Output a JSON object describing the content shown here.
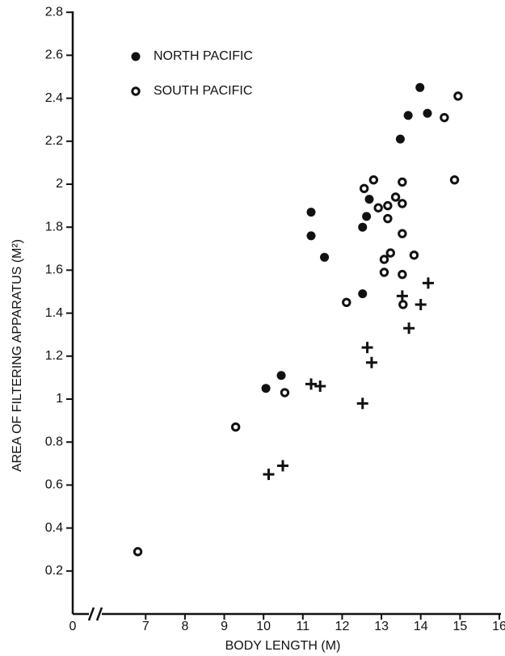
{
  "chart_data": {
    "type": "scatter",
    "x_label": "BODY LENGTH (M)",
    "y_label": "AREA OF FILTERING APPARATUS (M²)",
    "xlim": [
      0,
      16
    ],
    "x_break": [
      0,
      6
    ],
    "xticks": [
      0,
      7,
      8,
      9,
      10,
      11,
      12,
      13,
      14,
      15,
      16
    ],
    "ylim": [
      0,
      2.8
    ],
    "yticks": [
      0.2,
      0.4,
      0.6,
      0.8,
      1.0,
      1.2,
      1.4,
      1.6,
      1.8,
      2.0,
      2.2,
      2.4,
      2.6,
      2.8
    ],
    "series": [
      {
        "name": "NORTH PACIFIC",
        "marker": "filled",
        "color": "#111111",
        "x": [
          10.06,
          10.45,
          11.21,
          11.21,
          11.55,
          12.52,
          12.52,
          12.62,
          12.69,
          13.48,
          13.68,
          13.98,
          14.17
        ],
        "values": [
          1.05,
          1.11,
          1.87,
          1.76,
          1.66,
          1.8,
          1.49,
          1.85,
          1.93,
          2.21,
          2.32,
          2.45,
          2.33
        ]
      },
      {
        "name": "SOUTH PACIFIC",
        "marker": "open",
        "color": "#111111",
        "x": [
          6.8,
          9.29,
          10.54,
          12.11,
          12.56,
          12.8,
          12.92,
          13.16,
          13.16,
          13.36,
          13.53,
          13.53,
          13.23,
          13.07,
          13.07,
          13.53,
          13.53,
          13.55,
          13.83,
          14.6,
          14.86,
          14.95
        ],
        "values": [
          0.29,
          0.87,
          1.03,
          1.45,
          1.98,
          2.02,
          1.89,
          1.9,
          1.84,
          1.94,
          2.01,
          1.91,
          1.68,
          1.65,
          1.59,
          1.77,
          1.58,
          1.44,
          1.67,
          2.31,
          2.02,
          2.41
        ]
      },
      {
        "marker": "plus",
        "color": "#111111",
        "x": [
          10.13,
          10.49,
          11.21,
          11.44,
          12.52,
          12.64,
          12.75,
          13.53,
          13.7,
          14.0,
          14.19
        ],
        "values": [
          0.65,
          0.69,
          1.07,
          1.06,
          0.98,
          1.24,
          1.17,
          1.48,
          1.33,
          1.44,
          1.54
        ]
      }
    ]
  }
}
